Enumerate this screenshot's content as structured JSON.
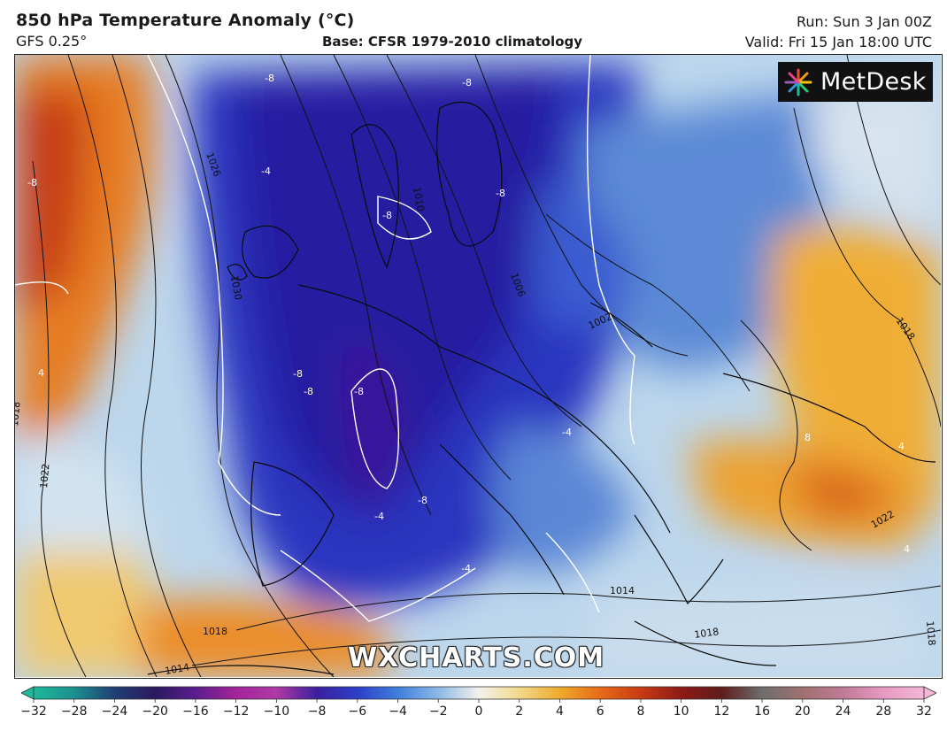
{
  "header": {
    "title": "850 hPa Temperature Anomaly (°C)",
    "model": "GFS 0.25°",
    "base": "Base: CFSR 1979-2010 climatology",
    "run": "Run: Sun 3 Jan 00Z",
    "valid": "Valid: Fri 15 Jan 18:00 UTC"
  },
  "logo": {
    "text": "MetDesk",
    "icon": "starburst-logo-icon"
  },
  "watermark": "WXCHARTS.COM",
  "map": {
    "anomaly_labels": [
      "-8",
      "-8",
      "-8",
      "-8",
      "-8",
      "-8",
      "-8",
      "-8",
      "-8",
      "-4",
      "-4",
      "-4",
      "-4",
      "4",
      "4",
      "4",
      "8"
    ],
    "isobar_labels": [
      "1026",
      "1010",
      "1006",
      "1002",
      "1018",
      "1022",
      "1018",
      "1014",
      "1018",
      "1014",
      "1022",
      "1018",
      "1030",
      "1018"
    ]
  },
  "colorbar": {
    "ticks": [
      "−32",
      "−28",
      "−24",
      "−20",
      "−16",
      "−12",
      "−10",
      "−8",
      "−6",
      "−4",
      "−2",
      "0",
      "2",
      "4",
      "6",
      "8",
      "10",
      "12",
      "16",
      "20",
      "24",
      "28",
      "32"
    ],
    "colors": [
      "#1db99a",
      "#1b8f8f",
      "#1f3f73",
      "#2b1960",
      "#5b1d8e",
      "#a5239a",
      "#b03aa6",
      "#3a1f9e",
      "#2d3fc9",
      "#3f7fdc",
      "#8bb8e6",
      "#f3f2ec",
      "#f1d98a",
      "#efaa2c",
      "#e76b18",
      "#c93a14",
      "#8e1a16",
      "#5e1c1c",
      "#6e6e6e",
      "#a07070",
      "#c07a95",
      "#e79ac2",
      "#f4b7d6"
    ]
  }
}
